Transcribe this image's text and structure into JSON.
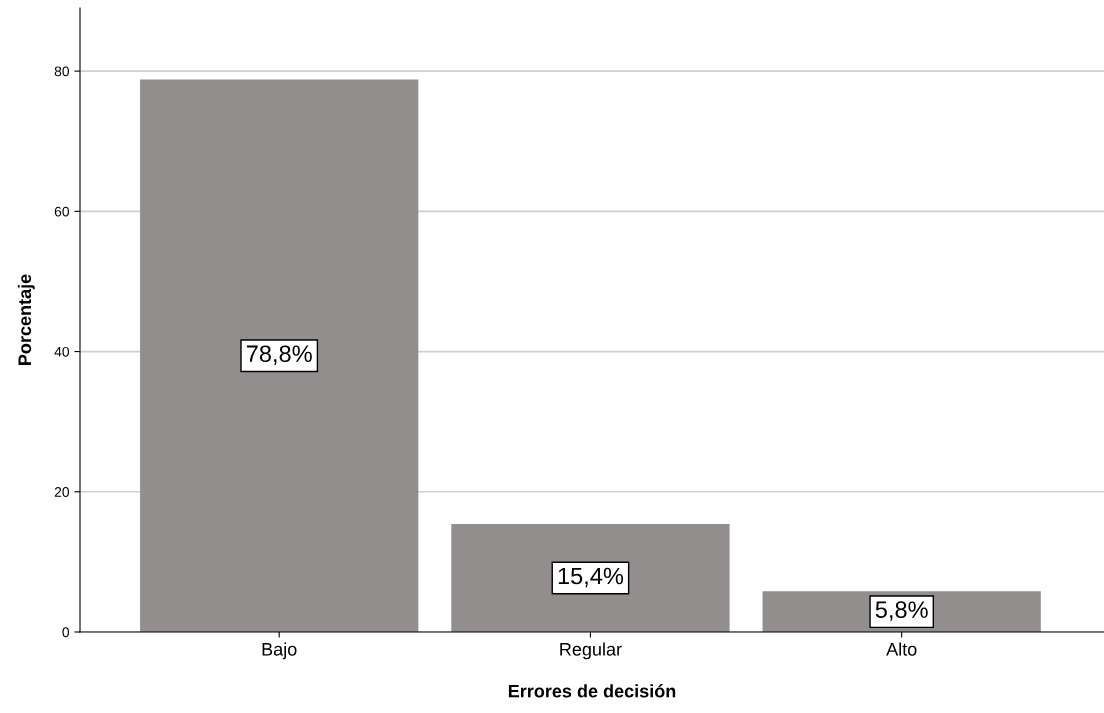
{
  "chart_data": {
    "type": "bar",
    "xlabel": "Errores de decisión",
    "ylabel": "Porcentaje",
    "categories": [
      "Bajo",
      "Regular",
      "Alto"
    ],
    "values": [
      78.8,
      15.4,
      5.8
    ],
    "value_labels": [
      "78,8%",
      "15,4%",
      "5,8%"
    ],
    "color": "#928e8d",
    "ylim": [
      0,
      89
    ],
    "yticks": [
      0,
      20,
      40,
      60,
      80
    ],
    "grid": "y"
  }
}
